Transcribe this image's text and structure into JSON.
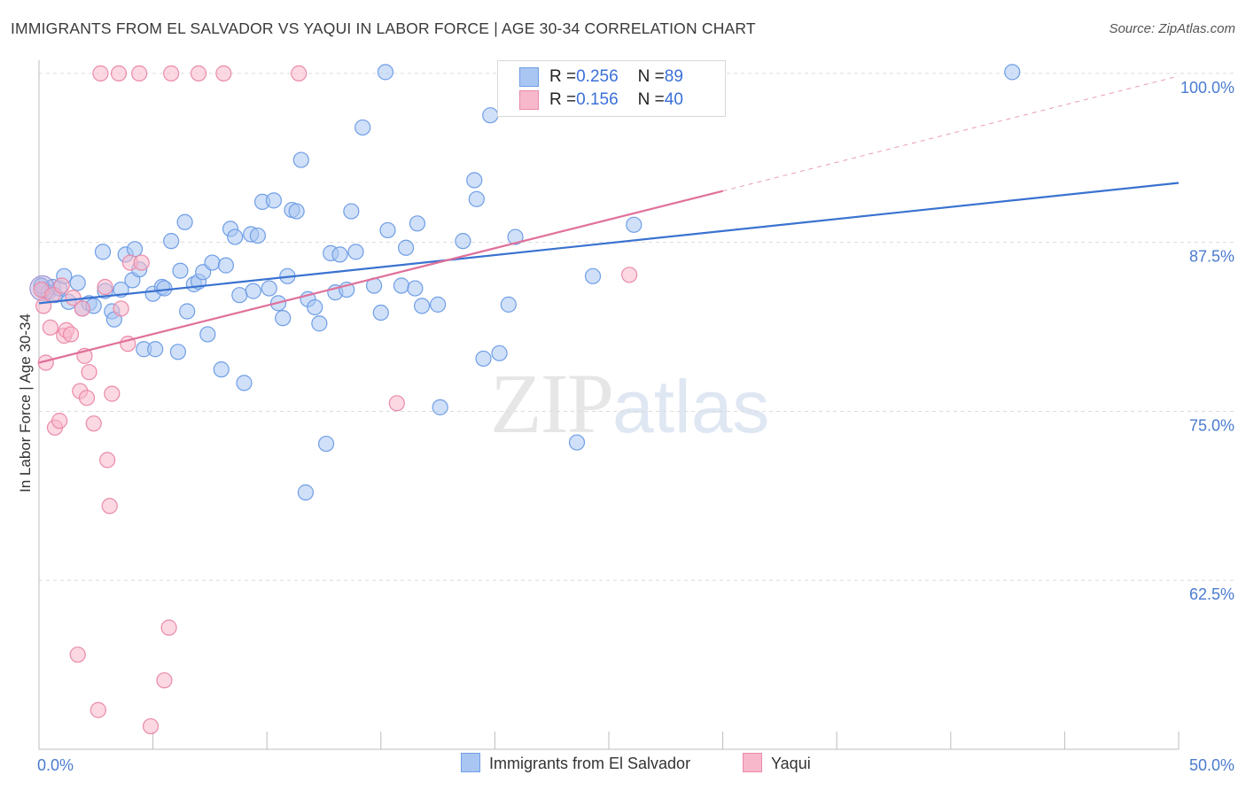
{
  "header": {
    "title": "IMMIGRANTS FROM EL SALVADOR VS YAQUI IN LABOR FORCE | AGE 30-34 CORRELATION CHART",
    "source": "Source: ZipAtlas.com"
  },
  "watermark": {
    "zip": "ZIP",
    "atlas": "atlas"
  },
  "legend": {
    "rows": [
      {
        "r_label": "R = ",
        "r_value": "0.256",
        "n_label": "N = ",
        "n_value": "89",
        "color": "#a9c6f2",
        "border": "#6f9ee6"
      },
      {
        "r_label": "R = ",
        "r_value": "0.156",
        "n_label": "N = ",
        "n_value": "40",
        "color": "#f7b8cb",
        "border": "#ea8aa9"
      }
    ]
  },
  "bottom_legend": {
    "items": [
      {
        "label": "Immigrants from El Salvador",
        "color": "#a9c6f2",
        "border": "#6f9ee6"
      },
      {
        "label": "Yaqui",
        "color": "#f7b8cb",
        "border": "#ea8aa9"
      }
    ]
  },
  "chart_data": {
    "type": "scatter",
    "title": "IMMIGRANTS FROM EL SALVADOR VS YAQUI IN LABOR FORCE | AGE 30-34 CORRELATION CHART",
    "xlabel": "",
    "ylabel": "In Labor Force | Age 30-34",
    "xlim": [
      0,
      50
    ],
    "ylim": [
      50,
      101.5
    ],
    "x_tick_labels": [
      "0.0%",
      "50.0%"
    ],
    "y_ticks": [
      62.5,
      75.0,
      87.5,
      100.0
    ],
    "y_tick_labels": [
      "62.5%",
      "75.0%",
      "87.5%",
      "100.0%"
    ],
    "grid": "horizontal dashed",
    "series": [
      {
        "name": "Immigrants from El Salvador",
        "color": "#6f9ee6",
        "fill": "#a9c6f2",
        "trend": {
          "x": [
            0,
            50
          ],
          "y": [
            83.0,
            91.9
          ],
          "color": "#3a72d0"
        },
        "points": [
          [
            0.2,
            84.0
          ],
          [
            0.4,
            83.8
          ],
          [
            0.6,
            84.2
          ],
          [
            0.7,
            83.6
          ],
          [
            0.9,
            84.1
          ],
          [
            1.1,
            85.0
          ],
          [
            1.3,
            83.1
          ],
          [
            1.7,
            84.5
          ],
          [
            1.9,
            82.6
          ],
          [
            2.2,
            83.0
          ],
          [
            2.4,
            82.8
          ],
          [
            2.8,
            86.8
          ],
          [
            2.9,
            83.9
          ],
          [
            3.2,
            82.4
          ],
          [
            3.3,
            81.8
          ],
          [
            3.6,
            84.0
          ],
          [
            3.8,
            86.6
          ],
          [
            4.1,
            84.7
          ],
          [
            4.2,
            87.0
          ],
          [
            4.4,
            85.5
          ],
          [
            4.6,
            79.6
          ],
          [
            5.0,
            83.7
          ],
          [
            5.1,
            79.6
          ],
          [
            5.4,
            84.2
          ],
          [
            5.5,
            84.1
          ],
          [
            5.8,
            87.6
          ],
          [
            6.1,
            79.4
          ],
          [
            6.2,
            85.4
          ],
          [
            6.4,
            89.0
          ],
          [
            6.5,
            82.4
          ],
          [
            6.8,
            84.4
          ],
          [
            7.0,
            84.6
          ],
          [
            7.2,
            85.3
          ],
          [
            7.4,
            80.7
          ],
          [
            7.6,
            86.0
          ],
          [
            8.0,
            78.1
          ],
          [
            8.2,
            85.8
          ],
          [
            8.4,
            88.5
          ],
          [
            8.6,
            87.9
          ],
          [
            8.8,
            83.6
          ],
          [
            9.0,
            77.1
          ],
          [
            9.3,
            88.1
          ],
          [
            9.4,
            83.9
          ],
          [
            9.6,
            88.0
          ],
          [
            9.8,
            90.5
          ],
          [
            10.1,
            84.1
          ],
          [
            10.3,
            90.6
          ],
          [
            10.5,
            83.0
          ],
          [
            10.7,
            81.9
          ],
          [
            10.9,
            85.0
          ],
          [
            11.1,
            89.9
          ],
          [
            11.3,
            89.8
          ],
          [
            11.5,
            93.6
          ],
          [
            11.7,
            69.0
          ],
          [
            11.8,
            83.3
          ],
          [
            12.1,
            82.7
          ],
          [
            12.3,
            81.5
          ],
          [
            12.6,
            72.6
          ],
          [
            12.8,
            86.7
          ],
          [
            13.0,
            83.8
          ],
          [
            13.2,
            86.6
          ],
          [
            13.5,
            84.0
          ],
          [
            13.7,
            89.8
          ],
          [
            13.9,
            86.8
          ],
          [
            14.2,
            96.0
          ],
          [
            14.7,
            84.3
          ],
          [
            15.0,
            82.3
          ],
          [
            15.2,
            100.1
          ],
          [
            15.3,
            88.4
          ],
          [
            15.9,
            84.3
          ],
          [
            16.1,
            87.1
          ],
          [
            16.5,
            84.1
          ],
          [
            16.6,
            88.9
          ],
          [
            16.8,
            82.8
          ],
          [
            17.5,
            82.9
          ],
          [
            17.6,
            75.3
          ],
          [
            18.6,
            87.6
          ],
          [
            19.1,
            92.1
          ],
          [
            19.2,
            90.7
          ],
          [
            19.5,
            78.9
          ],
          [
            19.8,
            96.9
          ],
          [
            20.2,
            79.3
          ],
          [
            20.6,
            82.9
          ],
          [
            20.9,
            87.9
          ],
          [
            23.6,
            72.7
          ],
          [
            24.3,
            85.0
          ],
          [
            26.1,
            88.8
          ],
          [
            42.7,
            100.1
          ],
          [
            0.1,
            84.3
          ]
        ]
      },
      {
        "name": "Yaqui",
        "color": "#ea8aa9",
        "fill": "#f7b8cb",
        "trend": {
          "x": [
            0,
            30
          ],
          "y": [
            78.6,
            91.3
          ],
          "color": "#e0709a",
          "dashed_extension": {
            "x": [
              30,
              50
            ],
            "y": [
              91.3,
              99.8
            ]
          }
        },
        "points": [
          [
            0.1,
            84.0
          ],
          [
            0.2,
            82.8
          ],
          [
            0.3,
            78.6
          ],
          [
            0.5,
            81.2
          ],
          [
            0.6,
            83.6
          ],
          [
            0.7,
            73.8
          ],
          [
            0.9,
            74.3
          ],
          [
            1.0,
            84.3
          ],
          [
            1.1,
            80.6
          ],
          [
            1.2,
            81.0
          ],
          [
            1.4,
            80.7
          ],
          [
            1.5,
            83.4
          ],
          [
            1.7,
            57.0
          ],
          [
            1.8,
            76.5
          ],
          [
            1.9,
            82.6
          ],
          [
            2.0,
            79.1
          ],
          [
            2.1,
            76.0
          ],
          [
            2.2,
            77.9
          ],
          [
            2.4,
            74.1
          ],
          [
            2.6,
            52.9
          ],
          [
            2.7,
            100.0
          ],
          [
            2.9,
            84.2
          ],
          [
            3.0,
            71.4
          ],
          [
            3.1,
            68.0
          ],
          [
            3.2,
            76.3
          ],
          [
            3.5,
            100.0
          ],
          [
            3.6,
            82.6
          ],
          [
            3.9,
            80.0
          ],
          [
            4.0,
            86.0
          ],
          [
            4.4,
            100.0
          ],
          [
            4.5,
            86.0
          ],
          [
            4.9,
            51.7
          ],
          [
            5.5,
            55.1
          ],
          [
            5.7,
            59.0
          ],
          [
            5.8,
            100.0
          ],
          [
            7.0,
            100.0
          ],
          [
            8.1,
            100.0
          ],
          [
            11.4,
            100.0
          ],
          [
            15.7,
            75.6
          ],
          [
            25.9,
            85.1
          ]
        ]
      }
    ]
  }
}
